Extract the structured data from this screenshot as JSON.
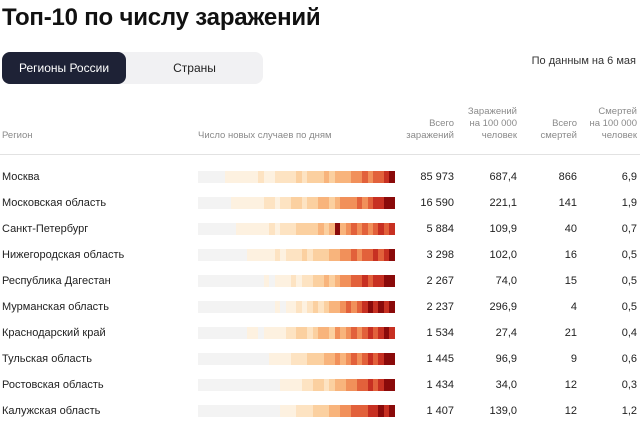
{
  "title": "Топ-10 по числу заражений",
  "tabs": [
    {
      "label": "Регионы России",
      "active": true
    },
    {
      "label": "Страны",
      "active": false
    }
  ],
  "as_of": "По данным на 6 мая",
  "columns": {
    "region": "Регион",
    "daily": "Число новых случаев по дням",
    "total_cases": [
      "Всего",
      "заражений"
    ],
    "cases_per_100k": [
      "Заражений",
      "на 100 000",
      "человек"
    ],
    "total_deaths": [
      "Всего",
      "смертей"
    ],
    "deaths_per_100k": [
      "Смертей",
      "на 100 000",
      "человек"
    ]
  },
  "rows": [
    {
      "region": "Москва",
      "total_cases": "85 973",
      "cases_per_100k": "687,4",
      "total_deaths": "866",
      "deaths_per_100k": "6,9",
      "heat": [
        0,
        0,
        0,
        0,
        0,
        1,
        1,
        1,
        1,
        1,
        1,
        2,
        1,
        1,
        2,
        2,
        2,
        2,
        3,
        2,
        3,
        3,
        3,
        4,
        3,
        4,
        4,
        4,
        5,
        5,
        6,
        5,
        6,
        6,
        7,
        8
      ]
    },
    {
      "region": "Московская область",
      "total_cases": "16 590",
      "cases_per_100k": "221,1",
      "total_deaths": "141",
      "deaths_per_100k": "1,9",
      "heat": [
        0,
        0,
        0,
        0,
        0,
        0,
        1,
        1,
        1,
        1,
        1,
        1,
        2,
        2,
        1,
        2,
        2,
        3,
        3,
        2,
        3,
        3,
        4,
        4,
        3,
        4,
        5,
        5,
        5,
        6,
        5,
        6,
        7,
        7,
        8,
        8
      ]
    },
    {
      "region": "Санкт-Петербург",
      "total_cases": "5 884",
      "cases_per_100k": "109,9",
      "total_deaths": "40",
      "deaths_per_100k": "0,7",
      "heat": [
        0,
        0,
        0,
        0,
        0,
        0,
        0,
        1,
        1,
        1,
        1,
        1,
        1,
        2,
        1,
        2,
        2,
        2,
        3,
        3,
        3,
        3,
        4,
        3,
        4,
        8,
        4,
        5,
        6,
        5,
        6,
        5,
        6,
        7,
        6,
        7
      ]
    },
    {
      "region": "Нижегородская область",
      "total_cases": "3 298",
      "cases_per_100k": "102,0",
      "total_deaths": "16",
      "deaths_per_100k": "0,5",
      "heat": [
        0,
        0,
        0,
        0,
        0,
        0,
        0,
        0,
        0,
        1,
        1,
        1,
        1,
        1,
        2,
        1,
        2,
        2,
        2,
        3,
        2,
        3,
        3,
        3,
        4,
        4,
        5,
        5,
        6,
        5,
        6,
        6,
        7,
        6,
        7,
        8
      ]
    },
    {
      "region": "Республика Дагестан",
      "total_cases": "2 267",
      "cases_per_100k": "74,0",
      "total_deaths": "15",
      "deaths_per_100k": "0,5",
      "heat": [
        0,
        0,
        0,
        0,
        0,
        0,
        0,
        0,
        0,
        0,
        0,
        0,
        1,
        0,
        1,
        1,
        1,
        2,
        1,
        2,
        2,
        3,
        3,
        4,
        3,
        4,
        5,
        5,
        6,
        6,
        7,
        6,
        7,
        7,
        8,
        8
      ]
    },
    {
      "region": "Мурманская область",
      "total_cases": "2 237",
      "cases_per_100k": "296,9",
      "total_deaths": "4",
      "deaths_per_100k": "0,5",
      "heat": [
        0,
        0,
        0,
        0,
        0,
        0,
        0,
        0,
        0,
        0,
        0,
        0,
        0,
        0,
        1,
        0,
        1,
        1,
        2,
        1,
        2,
        3,
        2,
        3,
        4,
        4,
        5,
        6,
        5,
        6,
        7,
        8,
        7,
        8,
        7,
        8
      ]
    },
    {
      "region": "Краснодарский край",
      "total_cases": "1 534",
      "cases_per_100k": "27,4",
      "total_deaths": "21",
      "deaths_per_100k": "0,4",
      "heat": [
        0,
        0,
        0,
        0,
        0,
        0,
        0,
        0,
        0,
        1,
        1,
        0,
        1,
        1,
        1,
        1,
        2,
        2,
        3,
        3,
        2,
        3,
        4,
        4,
        3,
        5,
        4,
        5,
        6,
        5,
        6,
        7,
        6,
        7,
        8,
        7
      ]
    },
    {
      "region": "Тульская область",
      "total_cases": "1 445",
      "cases_per_100k": "96,9",
      "total_deaths": "9",
      "deaths_per_100k": "0,6",
      "heat": [
        0,
        0,
        0,
        0,
        0,
        0,
        0,
        0,
        0,
        0,
        0,
        0,
        0,
        1,
        1,
        1,
        1,
        2,
        2,
        2,
        3,
        3,
        3,
        4,
        4,
        5,
        4,
        5,
        6,
        5,
        6,
        7,
        6,
        7,
        8,
        8
      ]
    },
    {
      "region": "Ростовская область",
      "total_cases": "1 434",
      "cases_per_100k": "34,0",
      "total_deaths": "12",
      "deaths_per_100k": "0,3",
      "heat": [
        0,
        0,
        0,
        0,
        0,
        0,
        0,
        0,
        0,
        0,
        0,
        0,
        0,
        0,
        0,
        1,
        1,
        1,
        1,
        2,
        2,
        3,
        3,
        2,
        3,
        4,
        4,
        5,
        5,
        6,
        6,
        7,
        6,
        7,
        8,
        8
      ]
    },
    {
      "region": "Калужская область",
      "total_cases": "1 407",
      "cases_per_100k": "139,0",
      "total_deaths": "12",
      "deaths_per_100k": "1,2",
      "heat": [
        0,
        0,
        0,
        0,
        0,
        0,
        0,
        0,
        0,
        0,
        0,
        0,
        0,
        0,
        0,
        1,
        1,
        1,
        2,
        2,
        2,
        3,
        3,
        3,
        4,
        4,
        5,
        5,
        6,
        6,
        6,
        7,
        7,
        8,
        7,
        8
      ]
    }
  ],
  "heat_colors": [
    "#f3f3f3",
    "#fdf1e0",
    "#fde3c2",
    "#fbd0a0",
    "#f8b47c",
    "#f1905a",
    "#e2613b",
    "#c73022",
    "#8a0a0a"
  ]
}
